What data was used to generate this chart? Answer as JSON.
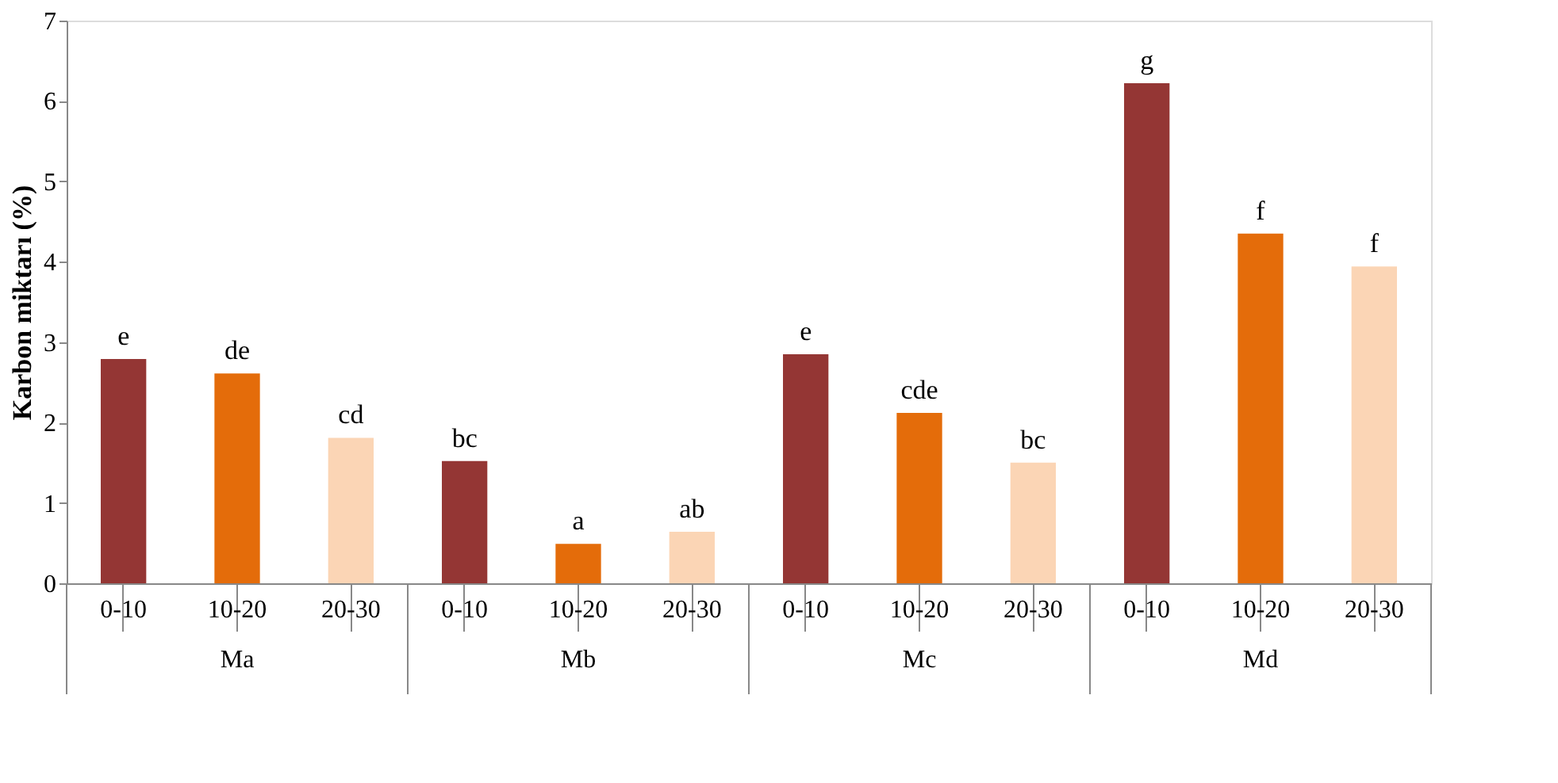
{
  "chart_data": {
    "type": "bar",
    "ylabel": "Karbon miktarı (%)",
    "categories": [
      "0-10",
      "10-20",
      "20-30",
      "0-10",
      "10-20",
      "20-30",
      "0-10",
      "10-20",
      "20-30",
      "0-10",
      "10-20",
      "20-30"
    ],
    "values": [
      2.79,
      2.61,
      1.81,
      1.52,
      0.49,
      0.64,
      2.85,
      2.12,
      1.5,
      6.22,
      4.35,
      3.94
    ],
    "colors": [
      "#943634",
      "#e46c0a",
      "#fbd5b5",
      "#943634",
      "#e46c0a",
      "#fbd5b5",
      "#943634",
      "#e46c0a",
      "#fbd5b5",
      "#943634",
      "#e46c0a",
      "#fbd5b5"
    ],
    "value_labels": [
      "e",
      "de",
      "cd",
      "bc",
      "a",
      "ab",
      "e",
      "cde",
      "bc",
      "g",
      "f",
      "f"
    ],
    "annotations": [
      "Ma",
      "Mb",
      "Mc",
      "Md"
    ],
    "ylim": [
      0,
      7
    ],
    "yticks": [
      0,
      1,
      2,
      3,
      4,
      5,
      6,
      7
    ],
    "grid": false
  }
}
